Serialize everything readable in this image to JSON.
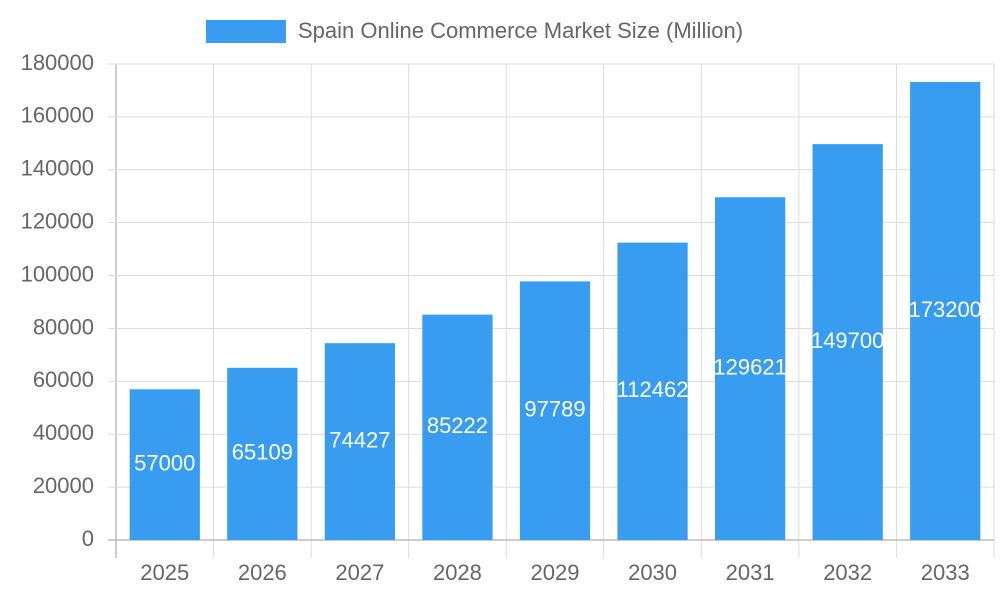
{
  "chart_data": {
    "type": "bar",
    "categories": [
      "2025",
      "2026",
      "2027",
      "2028",
      "2029",
      "2030",
      "2031",
      "2032",
      "2033"
    ],
    "series": [
      {
        "name": "Spain Online Commerce Market Size (Million)",
        "color": "#389cf0",
        "values": [
          57000,
          65109,
          74427,
          85222,
          97789,
          112462,
          129621,
          149700,
          173200
        ]
      }
    ],
    "ylim": [
      0,
      180000
    ],
    "yticks": [
      0,
      20000,
      40000,
      60000,
      80000,
      100000,
      120000,
      140000,
      160000,
      180000
    ],
    "grid": true
  }
}
